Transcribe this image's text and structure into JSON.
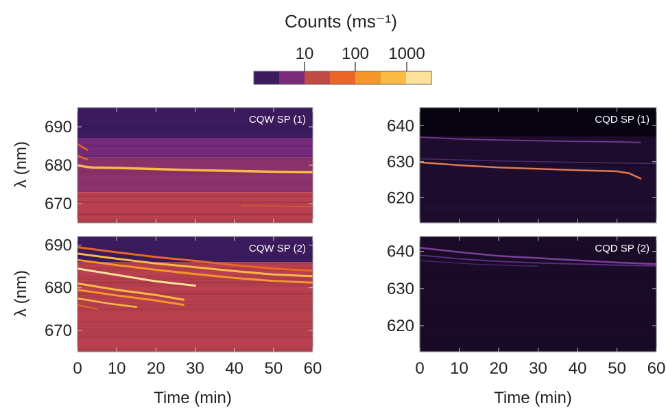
{
  "colorbar": {
    "title": "Counts (ms⁻¹)",
    "ticks": [
      "10",
      "100",
      "1000"
    ],
    "colors": [
      "#3b1a5e",
      "#7a2a78",
      "#c24a44",
      "#ea6628",
      "#f5962a",
      "#f9bb45",
      "#fde299"
    ],
    "scale": "log"
  },
  "chart_data": [
    {
      "type": "heatmap",
      "panel_label": "CQW SP (1)",
      "xlabel": "",
      "ylabel": "λ (nm)",
      "xlim": [
        0,
        60
      ],
      "ylim": [
        665,
        695
      ],
      "yticks": [
        "670",
        "680",
        "690"
      ],
      "xticks": [],
      "background_bands": [
        {
          "y": [
            687,
            695
          ],
          "color": "#3b1a5e"
        },
        {
          "y": [
            682,
            687
          ],
          "color": "#75297a"
        },
        {
          "y": [
            673,
            682
          ],
          "color": "#8e326c"
        },
        {
          "y": [
            665,
            673
          ],
          "color": "#b8404f"
        }
      ],
      "lines": [
        {
          "x": [
            0,
            2,
            4,
            10,
            20,
            30,
            40,
            50,
            60
          ],
          "y": [
            680.0,
            679.6,
            679.4,
            679.3,
            679.0,
            678.7,
            678.5,
            678.3,
            678.2
          ],
          "color": "#f9bb45",
          "width": 3.5
        },
        {
          "x": [
            0,
            2.5
          ],
          "y": [
            685.5,
            684.0
          ],
          "color": "#ea6628",
          "width": 2.5
        },
        {
          "x": [
            0,
            2.5
          ],
          "y": [
            682.5,
            681.5
          ],
          "color": "#ea6628",
          "width": 2.5
        },
        {
          "x": [
            42,
            60
          ],
          "y": [
            669.5,
            669.2
          ],
          "color": "#d0553a",
          "width": 2
        }
      ]
    },
    {
      "type": "heatmap",
      "panel_label": "CQD SP (1)",
      "xlabel": "",
      "ylabel": "",
      "xlim": [
        0,
        60
      ],
      "ylim": [
        613,
        645
      ],
      "yticks": [
        "620",
        "630",
        "640"
      ],
      "xticks": [],
      "background_bands": [
        {
          "y": [
            637,
            645
          ],
          "color": "#070310"
        },
        {
          "y": [
            613,
            637
          ],
          "color": "#1e0d2e"
        }
      ],
      "lines": [
        {
          "x": [
            0,
            10,
            20,
            30,
            40,
            50,
            53,
            56
          ],
          "y": [
            629.8,
            629.0,
            628.4,
            628.0,
            627.6,
            627.3,
            626.8,
            625.3
          ],
          "color": "#e07a52",
          "width": 2.5
        },
        {
          "x": [
            0,
            10,
            20,
            30,
            40,
            50,
            56
          ],
          "y": [
            636.8,
            636.3,
            636.0,
            635.8,
            635.6,
            635.5,
            635.3
          ],
          "color": "#6a3a8a",
          "width": 2
        },
        {
          "x": [
            0,
            20,
            40,
            60
          ],
          "y": [
            630.8,
            630.2,
            629.8,
            629.5
          ],
          "color": "#4a2a6a",
          "width": 1.5
        }
      ]
    },
    {
      "type": "heatmap",
      "panel_label": "CQW SP (2)",
      "xlabel": "Time (min)",
      "ylabel": "λ (nm)",
      "xlim": [
        0,
        60
      ],
      "ylim": [
        665,
        692
      ],
      "yticks": [
        "670",
        "680",
        "690"
      ],
      "xticks": [
        "0",
        "10",
        "20",
        "30",
        "40",
        "50",
        "60"
      ],
      "background_bands": [
        {
          "y": [
            686,
            692
          ],
          "color": "#3b1a5e"
        },
        {
          "y": [
            665,
            686
          ],
          "color": "#b8404f"
        }
      ],
      "lines": [
        {
          "x": [
            0,
            10,
            20,
            30,
            40,
            50,
            60
          ],
          "y": [
            689.5,
            688.3,
            687.2,
            686.3,
            685.3,
            684.5,
            684.0
          ],
          "color": "#ea6628",
          "width": 3
        },
        {
          "x": [
            0,
            10,
            20,
            30,
            40,
            50,
            60
          ],
          "y": [
            688.0,
            686.8,
            685.7,
            684.8,
            683.9,
            683.1,
            682.7
          ],
          "color": "#f9bb45",
          "width": 3
        },
        {
          "x": [
            0,
            10,
            20,
            30,
            40,
            50,
            60
          ],
          "y": [
            686.5,
            685.3,
            684.2,
            683.2,
            682.3,
            681.6,
            681.2
          ],
          "color": "#f5962a",
          "width": 3
        },
        {
          "x": [
            0,
            10,
            20,
            30
          ],
          "y": [
            684.5,
            683.0,
            681.5,
            680.5
          ],
          "color": "#fde299",
          "width": 3
        },
        {
          "x": [
            0,
            10,
            20,
            27
          ],
          "y": [
            681.0,
            679.5,
            678.3,
            677.2
          ],
          "color": "#f9bb45",
          "width": 3
        },
        {
          "x": [
            0,
            10,
            20,
            27
          ],
          "y": [
            679.5,
            678.2,
            677.0,
            676.0
          ],
          "color": "#f5962a",
          "width": 3
        },
        {
          "x": [
            0,
            8,
            15
          ],
          "y": [
            677.5,
            676.3,
            675.5
          ],
          "color": "#f9bb45",
          "width": 2.5
        },
        {
          "x": [
            0,
            5
          ],
          "y": [
            676.0,
            675.0
          ],
          "color": "#ea6628",
          "width": 2
        }
      ]
    },
    {
      "type": "heatmap",
      "panel_label": "CQD SP (2)",
      "xlabel": "Time (min)",
      "ylabel": "",
      "xlim": [
        0,
        60
      ],
      "ylim": [
        613,
        644
      ],
      "yticks": [
        "620",
        "630",
        "640"
      ],
      "xticks": [
        "0",
        "10",
        "20",
        "30",
        "40",
        "50",
        "60"
      ],
      "background_bands": [
        {
          "y": [
            613,
            644
          ],
          "color": "#1a0b28"
        }
      ],
      "lines": [
        {
          "x": [
            0,
            10,
            20,
            30,
            40,
            50,
            60
          ],
          "y": [
            641.0,
            639.8,
            638.8,
            638.2,
            637.6,
            637.0,
            636.6
          ],
          "color": "#7b3f9a",
          "width": 2.5
        },
        {
          "x": [
            0,
            10,
            20,
            30,
            40,
            50,
            60
          ],
          "y": [
            639.0,
            638.0,
            637.3,
            636.9,
            636.6,
            636.3,
            636.1
          ],
          "color": "#5a2e7e",
          "width": 2
        },
        {
          "x": [
            0,
            15,
            30
          ],
          "y": [
            637.5,
            636.5,
            636.0
          ],
          "color": "#4a2468",
          "width": 1.5
        }
      ]
    }
  ]
}
